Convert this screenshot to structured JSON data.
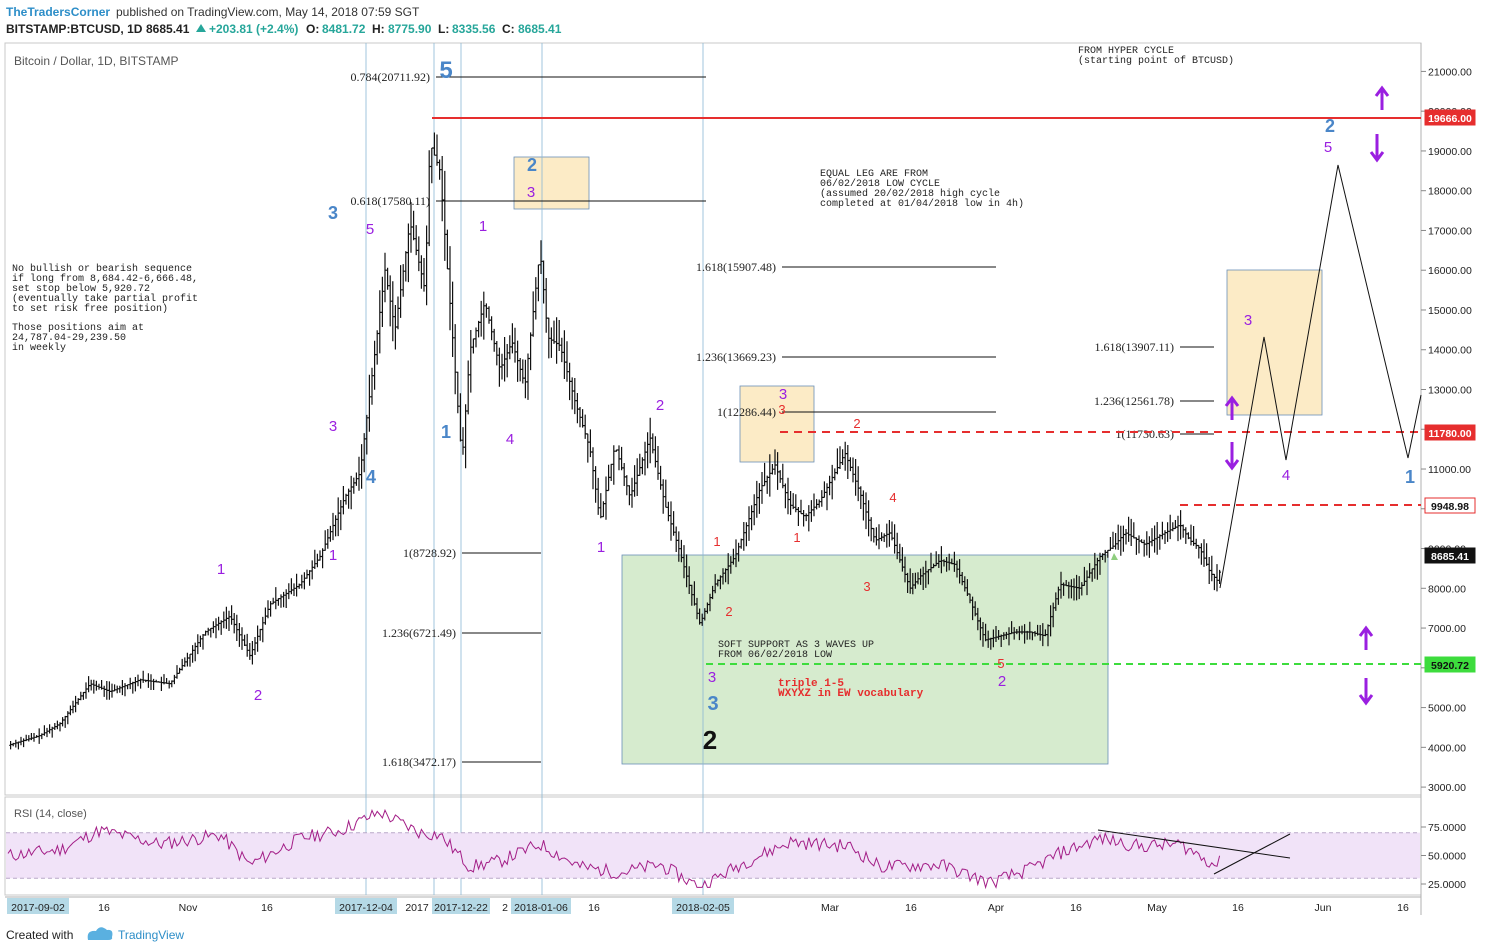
{
  "header": {
    "brand": "TheTradersCorner",
    "published": "published on TradingView.com, May 14, 2018 07:59 SGT",
    "symbol": "BITSTAMP:BTCUSD, 1D",
    "last": "8685.41",
    "change": "+203.81 (+2.4%)",
    "o_label": "O:",
    "o_value": "8481.72",
    "h_label": "H:",
    "h_value": "8775.90",
    "l_label": "L:",
    "l_value": "8335.56",
    "c_label": "C:",
    "c_value": "8685.41"
  },
  "colors": {
    "up": "#26a69a",
    "red": "#e62e2e",
    "purple": "#9a1fe0",
    "blue": "#4a86c8",
    "green_line": "#3ddc3d",
    "rsi_line": "#a31e87",
    "rsi_band": "#f1e3f8",
    "axis_label": "#b5d9e6"
  },
  "chart_data": {
    "type": "line",
    "title": "Bitcoin / Dollar, 1D, BITSTAMP",
    "ylim": [
      2500,
      22000
    ],
    "yticks": [
      "3000.00",
      "4000.00",
      "5000.00",
      "6000.00",
      "7000.00",
      "8000.00",
      "9000.00",
      "10000.00",
      "11000.00",
      "12000.00",
      "13000.00",
      "14000.00",
      "15000.00",
      "16000.00",
      "17000.00",
      "18000.00",
      "19000.00",
      "20000.00",
      "21000.00"
    ],
    "price_tags": [
      {
        "label": "19666.00",
        "kind": "red"
      },
      {
        "label": "11780.00",
        "kind": "red"
      },
      {
        "label": "9948.98",
        "kind": "red-outline"
      },
      {
        "label": "8685.41",
        "kind": "dark"
      },
      {
        "label": "5920.72",
        "kind": "green"
      }
    ],
    "xticks": [
      "2017-09-02",
      "16",
      "Nov",
      "16",
      "2017-12-04",
      "2017",
      "2017-12-22",
      "2",
      "2018-01-06",
      "16",
      "2018-02-05",
      "Mar",
      "16",
      "Apr",
      "16",
      "May",
      "16",
      "Jun",
      "16"
    ],
    "fib_labels": [
      "0.784(20711.92)",
      "0.618(17580.11)",
      "1.618(15907.48)",
      "1.236(13669.23)",
      "1(12286.44)",
      "1(8728.92)",
      "1.236(6721.49)",
      "1.618(3472.17)",
      "1.618(13907.11)",
      "1.236(12561.78)",
      "1(11730.63)"
    ],
    "wave_labels_blue": [
      "5",
      "3",
      "2",
      "1",
      "4",
      "3",
      "2",
      "1",
      "2"
    ],
    "wave_labels_purple": [
      "5",
      "1",
      "3",
      "3",
      "1",
      "2",
      "2",
      "4",
      "1",
      "1",
      "3",
      "2",
      "3",
      "4",
      "5"
    ],
    "wave_labels_red": [
      "3",
      "2",
      "1",
      "2",
      "1",
      "4",
      "3",
      "5"
    ],
    "wave_label_black": "2",
    "notes": {
      "hyper_cycle_1": "FROM HYPER CYCLE",
      "hyper_cycle_2": "(starting point of BTCUSD)",
      "equal_leg_1": "EQUAL LEG ARE FROM",
      "equal_leg_2": "06/02/2018 LOW CYCLE",
      "equal_leg_3": "(assumed 20/02/2018 high cycle",
      "equal_leg_4": "completed at 01/04/2018 low in 4h)",
      "left_1": "No bullish or bearish sequence",
      "left_2": "if long from 8,684.42-6,666.48,",
      "left_3": "set stop below 5,920.72",
      "left_4": "(eventually take partial profit",
      "left_5": "to set risk free position)",
      "left_6": "Those positions aim at",
      "left_7": "24,787.04-29,239.50",
      "left_8": "in weekly",
      "soft_1": "SOFT SUPPORT AS 3 WAVES UP",
      "soft_2": "FROM 06/02/2018 LOW",
      "triple_1": "triple 1-5",
      "triple_2": "WXYXZ in EW vocabulary"
    },
    "rsi": {
      "label": "RSI (14, close)",
      "ticks": [
        "75.0000",
        "50.0000",
        "25.0000"
      ],
      "upper": 70,
      "lower": 30
    }
  },
  "footer": {
    "created_with": "Created with",
    "brand": "TradingView"
  }
}
